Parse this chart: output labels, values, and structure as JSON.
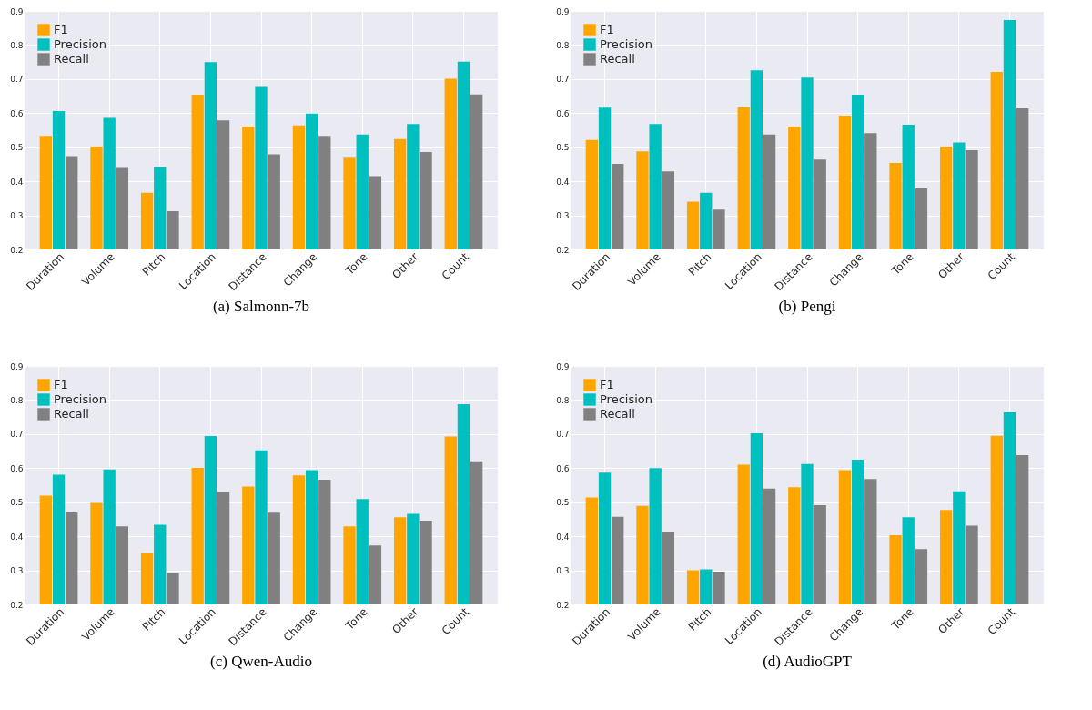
{
  "chart_data": [
    {
      "type": "bar",
      "title": "(a) Salmonn-7b",
      "categories": [
        "Duration",
        "Volume",
        "Pitch",
        "Location",
        "Distance",
        "Change",
        "Tone",
        "Other",
        "Count"
      ],
      "series": [
        {
          "name": "F1",
          "color": "#ffa500",
          "values": [
            0.533,
            0.502,
            0.366,
            0.654,
            0.561,
            0.564,
            0.469,
            0.524,
            0.701
          ]
        },
        {
          "name": "Precision",
          "color": "#00bfbf",
          "values": [
            0.606,
            0.586,
            0.442,
            0.75,
            0.677,
            0.599,
            0.537,
            0.568,
            0.751
          ]
        },
        {
          "name": "Recall",
          "color": "#808080",
          "values": [
            0.474,
            0.439,
            0.312,
            0.579,
            0.479,
            0.533,
            0.415,
            0.486,
            0.655
          ]
        }
      ],
      "ylim": [
        0.2,
        0.9
      ],
      "yticks": [
        0.2,
        0.3,
        0.4,
        0.5,
        0.6,
        0.7,
        0.8,
        0.9
      ],
      "grid": true,
      "legend": "top left"
    },
    {
      "type": "bar",
      "title": "(b) Pengi",
      "categories": [
        "Duration",
        "Volume",
        "Pitch",
        "Location",
        "Distance",
        "Change",
        "Tone",
        "Other",
        "Count"
      ],
      "series": [
        {
          "name": "F1",
          "color": "#ffa500",
          "values": [
            0.521,
            0.488,
            0.34,
            0.617,
            0.561,
            0.593,
            0.454,
            0.502,
            0.721
          ]
        },
        {
          "name": "Precision",
          "color": "#00bfbf",
          "values": [
            0.616,
            0.568,
            0.366,
            0.726,
            0.704,
            0.654,
            0.566,
            0.514,
            0.873
          ]
        },
        {
          "name": "Recall",
          "color": "#808080",
          "values": [
            0.451,
            0.429,
            0.317,
            0.537,
            0.464,
            0.541,
            0.38,
            0.491,
            0.614
          ]
        }
      ],
      "ylim": [
        0.2,
        0.9
      ],
      "yticks": [
        0.2,
        0.3,
        0.4,
        0.5,
        0.6,
        0.7,
        0.8,
        0.9
      ],
      "grid": true,
      "legend": "top left"
    },
    {
      "type": "bar",
      "title": "(c) Qwen-Audio",
      "categories": [
        "Duration",
        "Volume",
        "Pitch",
        "Location",
        "Distance",
        "Change",
        "Tone",
        "Other",
        "Count"
      ],
      "series": [
        {
          "name": "F1",
          "color": "#ffa500",
          "values": [
            0.519,
            0.498,
            0.35,
            0.601,
            0.546,
            0.579,
            0.429,
            0.456,
            0.693
          ]
        },
        {
          "name": "Precision",
          "color": "#00bfbf",
          "values": [
            0.581,
            0.596,
            0.434,
            0.694,
            0.652,
            0.594,
            0.509,
            0.466,
            0.788
          ]
        },
        {
          "name": "Recall",
          "color": "#808080",
          "values": [
            0.47,
            0.429,
            0.292,
            0.53,
            0.469,
            0.566,
            0.373,
            0.446,
            0.62
          ]
        }
      ],
      "ylim": [
        0.2,
        0.9
      ],
      "yticks": [
        0.2,
        0.3,
        0.4,
        0.5,
        0.6,
        0.7,
        0.8,
        0.9
      ],
      "grid": true,
      "legend": "top left"
    },
    {
      "type": "bar",
      "title": "(d) AudioGPT",
      "categories": [
        "Duration",
        "Volume",
        "Pitch",
        "Location",
        "Distance",
        "Change",
        "Tone",
        "Other",
        "Count"
      ],
      "series": [
        {
          "name": "F1",
          "color": "#ffa500",
          "values": [
            0.514,
            0.489,
            0.3,
            0.61,
            0.544,
            0.594,
            0.403,
            0.477,
            0.695
          ]
        },
        {
          "name": "Precision",
          "color": "#00bfbf",
          "values": [
            0.587,
            0.6,
            0.303,
            0.702,
            0.612,
            0.625,
            0.456,
            0.532,
            0.764
          ]
        },
        {
          "name": "Recall",
          "color": "#808080",
          "values": [
            0.457,
            0.414,
            0.296,
            0.54,
            0.491,
            0.568,
            0.362,
            0.431,
            0.638
          ]
        }
      ],
      "ylim": [
        0.2,
        0.9
      ],
      "yticks": [
        0.2,
        0.3,
        0.4,
        0.5,
        0.6,
        0.7,
        0.8,
        0.9
      ],
      "grid": true,
      "legend": "top left"
    }
  ]
}
